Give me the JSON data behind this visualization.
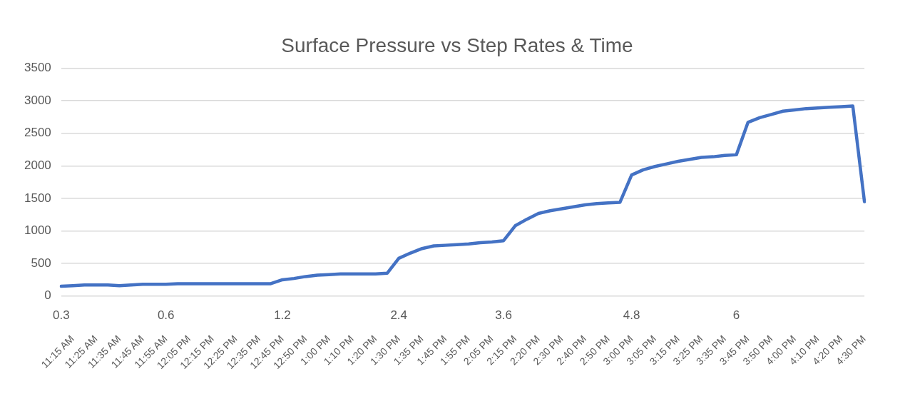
{
  "chart_data": {
    "type": "line",
    "title": "Surface Pressure vs Step Rates & Time",
    "categories": [
      null,
      "11:15 AM",
      null,
      "11:25 AM",
      null,
      "11:35 AM",
      null,
      "11:45 AM",
      null,
      "11:55 AM",
      null,
      "12:05 PM",
      null,
      "12:15 PM",
      null,
      "12:25 PM",
      null,
      "12:35 PM",
      null,
      "12:45 PM",
      null,
      "12:50 PM",
      null,
      "1:00 PM",
      null,
      "1:10 PM",
      null,
      "1:20 PM",
      null,
      "1:30 PM",
      null,
      "1:35 PM",
      null,
      "1:45 PM",
      null,
      "1:55 PM",
      null,
      "2:05 PM",
      null,
      "2:15 PM",
      null,
      "2:20 PM",
      null,
      "2:30 PM",
      null,
      "2:40 PM",
      null,
      "2:50 PM",
      null,
      "3:00 PM",
      null,
      "3:05 PM",
      null,
      "3:15 PM",
      null,
      "3:25 PM",
      null,
      "3:35 PM",
      null,
      "3:45 PM",
      null,
      "3:50 PM",
      null,
      "4:00 PM",
      null,
      "4:10 PM",
      null,
      "4:20 PM",
      null,
      "4:30 PM"
    ],
    "series": [
      {
        "color": "#4472c4",
        "values": [
          150,
          160,
          170,
          170,
          170,
          160,
          170,
          180,
          180,
          180,
          190,
          190,
          190,
          190,
          190,
          190,
          190,
          190,
          190,
          250,
          270,
          300,
          320,
          330,
          340,
          340,
          340,
          340,
          350,
          580,
          660,
          730,
          770,
          780,
          790,
          800,
          820,
          830,
          850,
          1080,
          1180,
          1270,
          1310,
          1340,
          1370,
          1400,
          1420,
          1430,
          1440,
          1860,
          1940,
          1990,
          2030,
          2070,
          2100,
          2130,
          2140,
          2160,
          2170,
          2670,
          2740,
          2790,
          2840,
          2860,
          2880,
          2890,
          2900,
          2910,
          2920,
          1450
        ]
      }
    ],
    "ylim": [
      0,
      3500
    ],
    "yticks": [
      0,
      500,
      1000,
      1500,
      2000,
      2500,
      3000,
      3500
    ],
    "grid": "y",
    "legend": false,
    "marker": "none",
    "line_style": "solid",
    "annotations": [
      "0.3",
      "0.6",
      "1.2",
      "2.4",
      "3.6",
      "4.8",
      "6"
    ]
  }
}
